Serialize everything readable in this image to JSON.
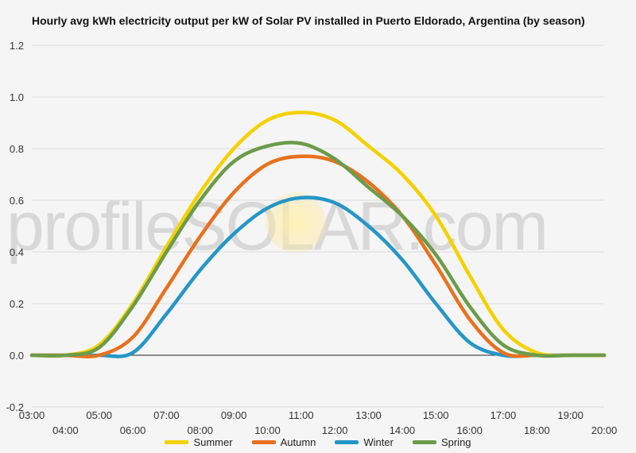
{
  "chart_data": {
    "type": "line",
    "title": "Hourly avg kWh electricity output per kW of Solar PV installed in Puerto Eldorado, Argentina (by season)",
    "xlabel": "",
    "ylabel": "",
    "ylim": [
      -0.2,
      1.2
    ],
    "yticks": [
      "-0.2",
      "0.0",
      "0.2",
      "0.4",
      "0.6",
      "0.8",
      "1.0",
      "1.2"
    ],
    "xlim": [
      3,
      20
    ],
    "xticks_upper": [
      "03:00",
      "05:00",
      "07:00",
      "09:00",
      "11:00",
      "13:00",
      "15:00",
      "17:00",
      "19:00"
    ],
    "xticks_lower": [
      "04:00",
      "06:00",
      "08:00",
      "10:00",
      "12:00",
      "14:00",
      "16:00",
      "18:00",
      "20:00"
    ],
    "grid": true,
    "legend_position": "bottom",
    "x": [
      3,
      4,
      5,
      6,
      7,
      8,
      9,
      10,
      11,
      12,
      13,
      14,
      15,
      16,
      17,
      18,
      19,
      20
    ],
    "series": [
      {
        "name": "Summer",
        "color": "#f5d100",
        "values": [
          0.0,
          0.0,
          0.04,
          0.2,
          0.42,
          0.63,
          0.8,
          0.91,
          0.94,
          0.91,
          0.81,
          0.7,
          0.54,
          0.31,
          0.1,
          0.01,
          0.0,
          0.0
        ]
      },
      {
        "name": "Autumn",
        "color": "#e8711e",
        "values": [
          0.0,
          0.0,
          0.0,
          0.07,
          0.26,
          0.46,
          0.63,
          0.74,
          0.77,
          0.75,
          0.67,
          0.54,
          0.35,
          0.14,
          0.01,
          0.0,
          0.0,
          0.0
        ]
      },
      {
        "name": "Winter",
        "color": "#2596c7",
        "values": [
          0.0,
          0.0,
          0.0,
          0.01,
          0.16,
          0.33,
          0.47,
          0.57,
          0.61,
          0.59,
          0.5,
          0.37,
          0.2,
          0.05,
          0.0,
          0.0,
          0.0,
          0.0
        ]
      },
      {
        "name": "Spring",
        "color": "#6b9c4a",
        "values": [
          0.0,
          0.0,
          0.03,
          0.19,
          0.4,
          0.6,
          0.75,
          0.81,
          0.82,
          0.76,
          0.65,
          0.54,
          0.39,
          0.19,
          0.04,
          0.0,
          0.0,
          0.0
        ]
      }
    ]
  },
  "watermark": "profileSOLAR.com"
}
